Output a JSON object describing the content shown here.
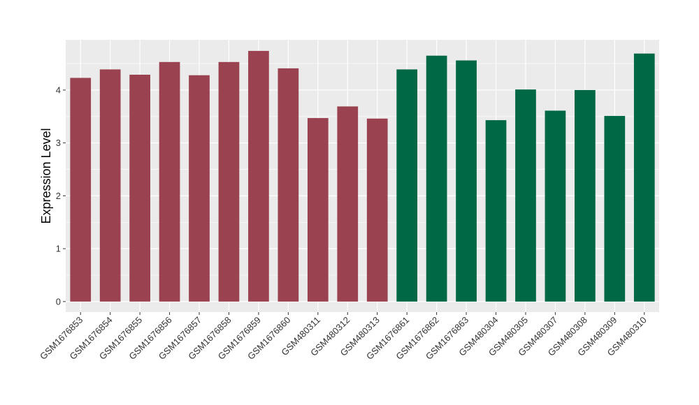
{
  "chart_data": {
    "type": "bar",
    "ylabel": "Expression Level",
    "xlabel": "",
    "ylim": [
      -0.2,
      4.95
    ],
    "yticks": [
      0,
      1,
      2,
      3,
      4
    ],
    "grid": true,
    "colors": {
      "group1": "#9b4250",
      "group2": "#006844",
      "panel": "#ebebeb",
      "grid": "#ffffff"
    },
    "categories": [
      "GSM1676853",
      "GSM1676854",
      "GSM1676855",
      "GSM1676856",
      "GSM1676857",
      "GSM1676858",
      "GSM1676859",
      "GSM1676860",
      "GSM480311",
      "GSM480312",
      "GSM480313",
      "GSM1676861",
      "GSM1676862",
      "GSM1676863",
      "GSM480304",
      "GSM480305",
      "GSM480307",
      "GSM480308",
      "GSM480309",
      "GSM480310"
    ],
    "values": [
      4.23,
      4.39,
      4.29,
      4.53,
      4.28,
      4.53,
      4.74,
      4.41,
      3.47,
      3.69,
      3.46,
      4.39,
      4.65,
      4.56,
      3.43,
      4.01,
      3.61,
      4.0,
      3.51,
      4.69
    ],
    "groups": [
      1,
      1,
      1,
      1,
      1,
      1,
      1,
      1,
      1,
      1,
      1,
      2,
      2,
      2,
      2,
      2,
      2,
      2,
      2,
      2
    ]
  }
}
